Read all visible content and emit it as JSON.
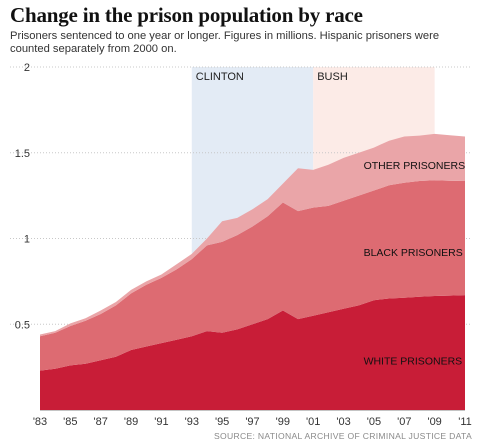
{
  "title": "Change in the prison population by race",
  "subtitle": "Prisoners sentenced to one year or longer. Figures in millions. Hispanic prisoners were counted separately from 2000 on.",
  "source": "SOURCE: NATIONAL ARCHIVE OF CRIMINAL JUSTICE DATA",
  "colors": {
    "white": "#c81d37",
    "black": "#dd6b72",
    "other": "#eaa5a8",
    "clinton": "#e3ebf5",
    "bush": "#fcebe7",
    "grid": "#c8c8c8"
  },
  "chart_data": {
    "type": "area",
    "stacked": true,
    "x": [
      1983,
      1984,
      1985,
      1986,
      1987,
      1988,
      1989,
      1990,
      1991,
      1992,
      1993,
      1994,
      1995,
      1996,
      1997,
      1998,
      1999,
      2000,
      2001,
      2002,
      2003,
      2004,
      2005,
      2006,
      2007,
      2008,
      2009,
      2010,
      2011
    ],
    "series": [
      {
        "name": "WHITE PRISONERS",
        "values": [
          0.23,
          0.24,
          0.26,
          0.27,
          0.29,
          0.31,
          0.35,
          0.37,
          0.39,
          0.41,
          0.43,
          0.46,
          0.45,
          0.47,
          0.5,
          0.53,
          0.58,
          0.53,
          0.55,
          0.57,
          0.59,
          0.61,
          0.64,
          0.65,
          0.655,
          0.66,
          0.665,
          0.667,
          0.67
        ]
      },
      {
        "name": "BLACK PRISONERS",
        "values": [
          0.2,
          0.21,
          0.23,
          0.25,
          0.27,
          0.3,
          0.33,
          0.36,
          0.38,
          0.41,
          0.45,
          0.5,
          0.53,
          0.55,
          0.57,
          0.6,
          0.63,
          0.63,
          0.63,
          0.62,
          0.63,
          0.64,
          0.64,
          0.66,
          0.67,
          0.675,
          0.675,
          0.67,
          0.665
        ]
      },
      {
        "name": "OTHER PRISONERS",
        "values": [
          0.01,
          0.01,
          0.015,
          0.015,
          0.02,
          0.02,
          0.02,
          0.02,
          0.02,
          0.03,
          0.03,
          0.04,
          0.12,
          0.1,
          0.1,
          0.1,
          0.11,
          0.25,
          0.22,
          0.24,
          0.25,
          0.25,
          0.25,
          0.26,
          0.27,
          0.265,
          0.27,
          0.265,
          0.26
        ]
      }
    ],
    "ylim": [
      0,
      2
    ],
    "yticks": [
      0.5,
      1,
      1.5,
      2
    ],
    "ytick_labels": [
      "0.5",
      "1",
      "1.5",
      "2"
    ],
    "xlim": [
      1983,
      2011
    ],
    "xticks": [
      1983,
      1985,
      1987,
      1989,
      1991,
      1993,
      1995,
      1997,
      1999,
      2001,
      2003,
      2005,
      2007,
      2009,
      2011
    ],
    "xtick_labels": [
      "'83",
      "'85",
      "'87",
      "'89",
      "'91",
      "'93",
      "'95",
      "'97",
      "'99",
      "'01",
      "'03",
      "'05",
      "'07",
      "'09",
      "'11"
    ],
    "grid": true,
    "periods": [
      {
        "label": "CLINTON",
        "start": 1993,
        "end": 2001
      },
      {
        "label": "BUSH",
        "start": 2001,
        "end": 2009
      }
    ],
    "area_labels": [
      {
        "text": "WHITE PRISONERS",
        "x": 2003,
        "y": 0.29
      },
      {
        "text": "BLACK PRISONERS",
        "x": 2003,
        "y": 0.92
      },
      {
        "text": "OTHER PRISONERS",
        "x": 2003,
        "y": 1.43
      }
    ]
  }
}
